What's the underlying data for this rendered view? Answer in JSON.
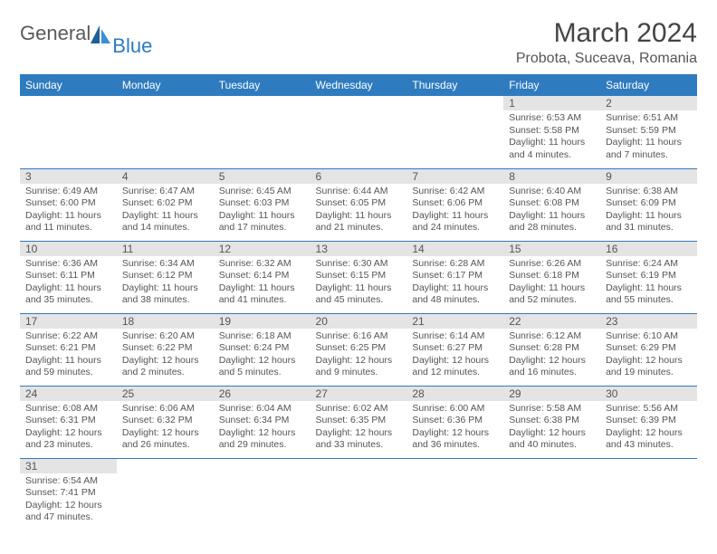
{
  "logo": {
    "general": "General",
    "blue": "Blue"
  },
  "header": {
    "month_title": "March 2024",
    "location": "Probota, Suceava, Romania"
  },
  "colors": {
    "header_bg": "#2f7bbf",
    "header_text": "#ffffff",
    "daynum_bg": "#e4e4e4",
    "border": "#2f7bbf",
    "body_text": "#555555"
  },
  "typography": {
    "month_title_size": 30,
    "location_size": 16,
    "header_cell_size": 12,
    "daynum_size": 12,
    "body_size": 10.5
  },
  "weekdays": [
    "Sunday",
    "Monday",
    "Tuesday",
    "Wednesday",
    "Thursday",
    "Friday",
    "Saturday"
  ],
  "weeks": [
    [
      null,
      null,
      null,
      null,
      null,
      {
        "n": "1",
        "sr": "Sunrise: 6:53 AM",
        "ss": "Sunset: 5:58 PM",
        "dl1": "Daylight: 11 hours",
        "dl2": "and 4 minutes."
      },
      {
        "n": "2",
        "sr": "Sunrise: 6:51 AM",
        "ss": "Sunset: 5:59 PM",
        "dl1": "Daylight: 11 hours",
        "dl2": "and 7 minutes."
      }
    ],
    [
      {
        "n": "3",
        "sr": "Sunrise: 6:49 AM",
        "ss": "Sunset: 6:00 PM",
        "dl1": "Daylight: 11 hours",
        "dl2": "and 11 minutes."
      },
      {
        "n": "4",
        "sr": "Sunrise: 6:47 AM",
        "ss": "Sunset: 6:02 PM",
        "dl1": "Daylight: 11 hours",
        "dl2": "and 14 minutes."
      },
      {
        "n": "5",
        "sr": "Sunrise: 6:45 AM",
        "ss": "Sunset: 6:03 PM",
        "dl1": "Daylight: 11 hours",
        "dl2": "and 17 minutes."
      },
      {
        "n": "6",
        "sr": "Sunrise: 6:44 AM",
        "ss": "Sunset: 6:05 PM",
        "dl1": "Daylight: 11 hours",
        "dl2": "and 21 minutes."
      },
      {
        "n": "7",
        "sr": "Sunrise: 6:42 AM",
        "ss": "Sunset: 6:06 PM",
        "dl1": "Daylight: 11 hours",
        "dl2": "and 24 minutes."
      },
      {
        "n": "8",
        "sr": "Sunrise: 6:40 AM",
        "ss": "Sunset: 6:08 PM",
        "dl1": "Daylight: 11 hours",
        "dl2": "and 28 minutes."
      },
      {
        "n": "9",
        "sr": "Sunrise: 6:38 AM",
        "ss": "Sunset: 6:09 PM",
        "dl1": "Daylight: 11 hours",
        "dl2": "and 31 minutes."
      }
    ],
    [
      {
        "n": "10",
        "sr": "Sunrise: 6:36 AM",
        "ss": "Sunset: 6:11 PM",
        "dl1": "Daylight: 11 hours",
        "dl2": "and 35 minutes."
      },
      {
        "n": "11",
        "sr": "Sunrise: 6:34 AM",
        "ss": "Sunset: 6:12 PM",
        "dl1": "Daylight: 11 hours",
        "dl2": "and 38 minutes."
      },
      {
        "n": "12",
        "sr": "Sunrise: 6:32 AM",
        "ss": "Sunset: 6:14 PM",
        "dl1": "Daylight: 11 hours",
        "dl2": "and 41 minutes."
      },
      {
        "n": "13",
        "sr": "Sunrise: 6:30 AM",
        "ss": "Sunset: 6:15 PM",
        "dl1": "Daylight: 11 hours",
        "dl2": "and 45 minutes."
      },
      {
        "n": "14",
        "sr": "Sunrise: 6:28 AM",
        "ss": "Sunset: 6:17 PM",
        "dl1": "Daylight: 11 hours",
        "dl2": "and 48 minutes."
      },
      {
        "n": "15",
        "sr": "Sunrise: 6:26 AM",
        "ss": "Sunset: 6:18 PM",
        "dl1": "Daylight: 11 hours",
        "dl2": "and 52 minutes."
      },
      {
        "n": "16",
        "sr": "Sunrise: 6:24 AM",
        "ss": "Sunset: 6:19 PM",
        "dl1": "Daylight: 11 hours",
        "dl2": "and 55 minutes."
      }
    ],
    [
      {
        "n": "17",
        "sr": "Sunrise: 6:22 AM",
        "ss": "Sunset: 6:21 PM",
        "dl1": "Daylight: 11 hours",
        "dl2": "and 59 minutes."
      },
      {
        "n": "18",
        "sr": "Sunrise: 6:20 AM",
        "ss": "Sunset: 6:22 PM",
        "dl1": "Daylight: 12 hours",
        "dl2": "and 2 minutes."
      },
      {
        "n": "19",
        "sr": "Sunrise: 6:18 AM",
        "ss": "Sunset: 6:24 PM",
        "dl1": "Daylight: 12 hours",
        "dl2": "and 5 minutes."
      },
      {
        "n": "20",
        "sr": "Sunrise: 6:16 AM",
        "ss": "Sunset: 6:25 PM",
        "dl1": "Daylight: 12 hours",
        "dl2": "and 9 minutes."
      },
      {
        "n": "21",
        "sr": "Sunrise: 6:14 AM",
        "ss": "Sunset: 6:27 PM",
        "dl1": "Daylight: 12 hours",
        "dl2": "and 12 minutes."
      },
      {
        "n": "22",
        "sr": "Sunrise: 6:12 AM",
        "ss": "Sunset: 6:28 PM",
        "dl1": "Daylight: 12 hours",
        "dl2": "and 16 minutes."
      },
      {
        "n": "23",
        "sr": "Sunrise: 6:10 AM",
        "ss": "Sunset: 6:29 PM",
        "dl1": "Daylight: 12 hours",
        "dl2": "and 19 minutes."
      }
    ],
    [
      {
        "n": "24",
        "sr": "Sunrise: 6:08 AM",
        "ss": "Sunset: 6:31 PM",
        "dl1": "Daylight: 12 hours",
        "dl2": "and 23 minutes."
      },
      {
        "n": "25",
        "sr": "Sunrise: 6:06 AM",
        "ss": "Sunset: 6:32 PM",
        "dl1": "Daylight: 12 hours",
        "dl2": "and 26 minutes."
      },
      {
        "n": "26",
        "sr": "Sunrise: 6:04 AM",
        "ss": "Sunset: 6:34 PM",
        "dl1": "Daylight: 12 hours",
        "dl2": "and 29 minutes."
      },
      {
        "n": "27",
        "sr": "Sunrise: 6:02 AM",
        "ss": "Sunset: 6:35 PM",
        "dl1": "Daylight: 12 hours",
        "dl2": "and 33 minutes."
      },
      {
        "n": "28",
        "sr": "Sunrise: 6:00 AM",
        "ss": "Sunset: 6:36 PM",
        "dl1": "Daylight: 12 hours",
        "dl2": "and 36 minutes."
      },
      {
        "n": "29",
        "sr": "Sunrise: 5:58 AM",
        "ss": "Sunset: 6:38 PM",
        "dl1": "Daylight: 12 hours",
        "dl2": "and 40 minutes."
      },
      {
        "n": "30",
        "sr": "Sunrise: 5:56 AM",
        "ss": "Sunset: 6:39 PM",
        "dl1": "Daylight: 12 hours",
        "dl2": "and 43 minutes."
      }
    ],
    [
      {
        "n": "31",
        "sr": "Sunrise: 6:54 AM",
        "ss": "Sunset: 7:41 PM",
        "dl1": "Daylight: 12 hours",
        "dl2": "and 47 minutes."
      },
      null,
      null,
      null,
      null,
      null,
      null
    ]
  ]
}
